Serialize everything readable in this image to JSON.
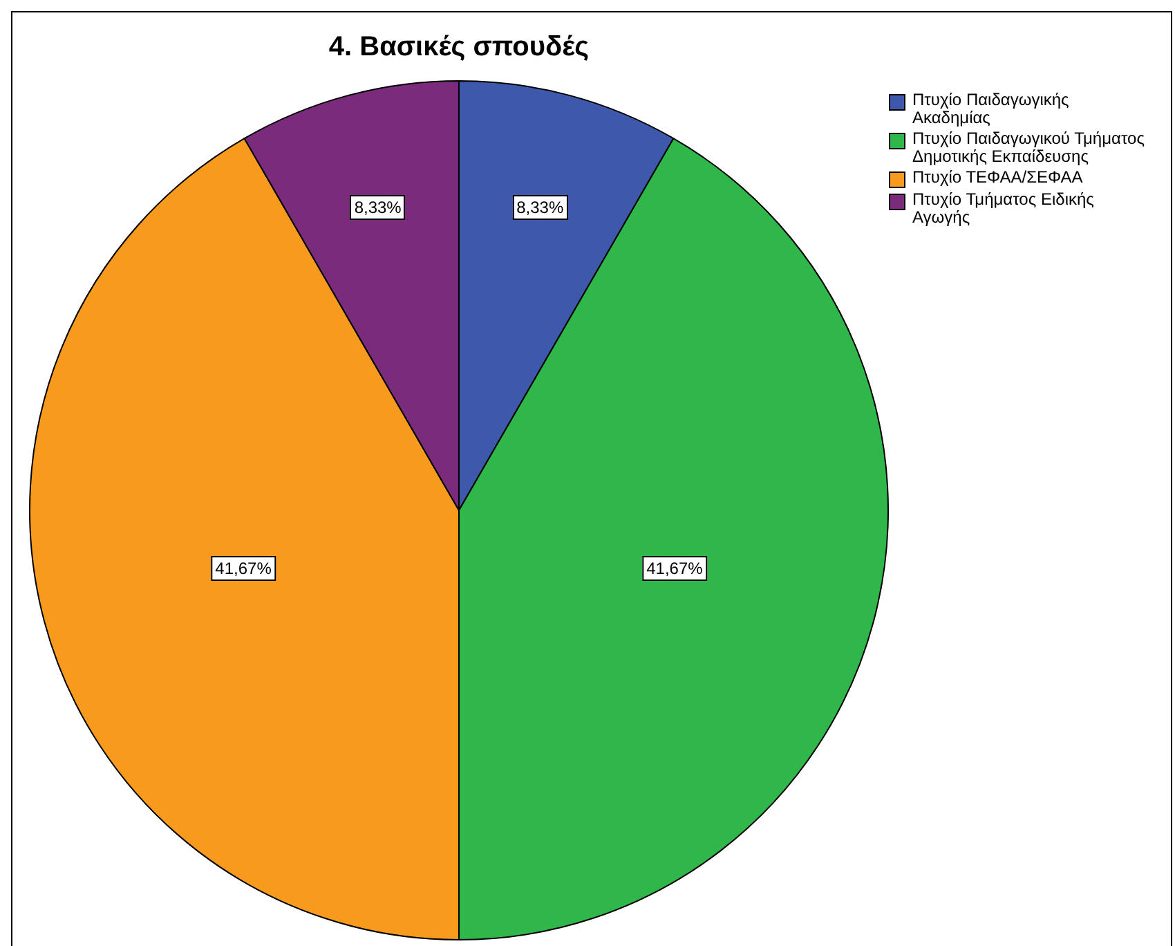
{
  "chart_data": {
    "type": "pie",
    "title": "4. Βασικές σπουδές",
    "categories": [
      "Πτυχίο Παιδαγωγικής Ακαδημίας",
      "Πτυχίο Παιδαγωγικού Τμήματος Δημοτικής Εκπαίδευσης",
      "Πτυχίο ΤΕΦΑΑ/ΣΕΦΑΑ",
      "Πτυχίο Τμήματος Ειδικής Αγωγής"
    ],
    "values": [
      8.33,
      41.67,
      41.67,
      8.33
    ],
    "colors": [
      "#3e58ac",
      "#2fb74a",
      "#f79a1e",
      "#7a2b7c"
    ],
    "value_labels": [
      "8,33%",
      "41,67%",
      "41,67%",
      "8,33%"
    ],
    "legend": "top right"
  }
}
